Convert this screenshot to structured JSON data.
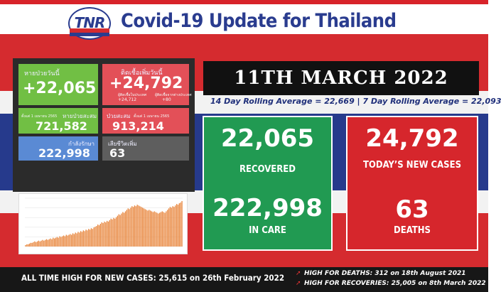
{
  "header": {
    "logo_text": "TNR",
    "title": "Covid-19 Update for Thailand"
  },
  "panel": {
    "tile1": {
      "label": "หายป่วยวันนี้",
      "value": "+22,065"
    },
    "tile2": {
      "label": "ติดเชื้อเพิ่มวันนี้",
      "value": "+24,792",
      "sub1_label": "ผู้ติดเชื้อในประเทศ",
      "sub1_value": "+24,712",
      "sub2_label": "ผู้ติดเชื้อจากต่างประเทศ",
      "sub2_value": "+80"
    },
    "tile3": {
      "label": "หายป่วยสะสม",
      "small": "ตั้งแต่ 1 เมษายน 2565",
      "value": "721,582"
    },
    "tile4": {
      "label": "ป่วยสะสม",
      "small": "ตั้งแต่ 1 เมษายน 2565",
      "value": "913,214"
    },
    "tile5": {
      "label": "กำลังรักษา",
      "value": "222,998"
    },
    "tile6": {
      "label": "เสียชีวิตเพิ่ม",
      "value": "63"
    }
  },
  "date_banner": "11TH MARCH 2022",
  "rolling": "14 Day Rolling Average = 22,669 |  7 Day Rolling Average = 22,093",
  "green_card": {
    "value1": "22,065",
    "label1": "RECOVERED",
    "value2": "222,998",
    "label2": "IN CARE"
  },
  "red_card": {
    "value1": "24,792",
    "label1": "TODAY’S NEW CASES",
    "value2": "63",
    "label2": "DEATHS"
  },
  "footer": {
    "all_time_high": "ALL TIME HIGH FOR NEW CASES: 25,615 on 26th February 2022",
    "deaths_high": "HIGH FOR DEATHS: 312 on 18th August 2021",
    "recoveries_high": "HIGH FOR RECOVERIES: 25,005 on 8th March 2022"
  },
  "colors": {
    "green": "#219a52",
    "red": "#d6262c",
    "navy": "#2a3c8f",
    "bar": "#e8843a"
  },
  "chart_data": {
    "type": "bar",
    "values": [
      2,
      3,
      3,
      4,
      5,
      5,
      6,
      7,
      6,
      7,
      8,
      7,
      8,
      9,
      8,
      9,
      10,
      9,
      10,
      11,
      10,
      12,
      11,
      12,
      13,
      12,
      14,
      13,
      14,
      15,
      14,
      16,
      15,
      16,
      17,
      16,
      18,
      17,
      19,
      18,
      20,
      19,
      21,
      20,
      22,
      21,
      23,
      22,
      24,
      23,
      25,
      24,
      26,
      27,
      28,
      30,
      29,
      31,
      33,
      32,
      34,
      33,
      35,
      34,
      36,
      38,
      37,
      39,
      38,
      40,
      42,
      44,
      43,
      45,
      47,
      46,
      48,
      50,
      52,
      51,
      53,
      55,
      54,
      56,
      55,
      57,
      56,
      55,
      54,
      53,
      52,
      51,
      50,
      49,
      50,
      49,
      48,
      47,
      48,
      47,
      46,
      45,
      46,
      47,
      48,
      47,
      46,
      48,
      50,
      52,
      54,
      53,
      55,
      54,
      56,
      58,
      57,
      59,
      60,
      62
    ]
  }
}
